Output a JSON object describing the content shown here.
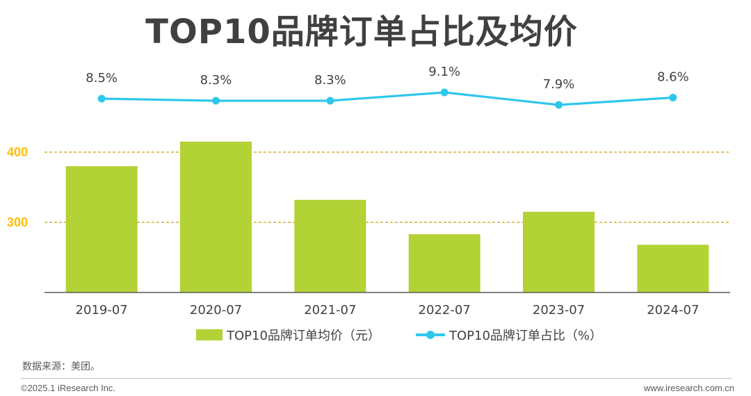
{
  "title": "TOP10品牌订单占比及均价",
  "colors": {
    "bar": "#b2d235",
    "line": "#2ec7ec",
    "grid": "#c8a000",
    "axis": "#595959",
    "tick": "#ffc000"
  },
  "chart_data": {
    "type": "bar+line",
    "categories": [
      "2019-07",
      "2020-07",
      "2021-07",
      "2022-07",
      "2023-07",
      "2024-07"
    ],
    "series": [
      {
        "name": "TOP10品牌订单均价（元）",
        "type": "bar",
        "values": [
          380,
          415,
          332,
          283,
          315,
          268
        ]
      },
      {
        "name": "TOP10品牌订单占比（%）",
        "type": "line",
        "values": [
          8.5,
          8.3,
          8.3,
          9.1,
          7.9,
          8.6
        ],
        "labels": [
          "8.5%",
          "8.3%",
          "8.3%",
          "9.1%",
          "7.9%",
          "8.6%"
        ]
      }
    ],
    "y_ticks": [
      300,
      400
    ],
    "ylim": [
      200,
      420
    ],
    "grid": "dashed lines at 300 and 400",
    "legend_position": "bottom-center"
  },
  "legend": {
    "bar_label": "TOP10品牌订单均价（元）",
    "line_label": "TOP10品牌订单占比（%）"
  },
  "source": "数据来源：美团。",
  "copyright": "©2025.1 iResearch Inc.",
  "site": "www.iresearch.com.cn"
}
